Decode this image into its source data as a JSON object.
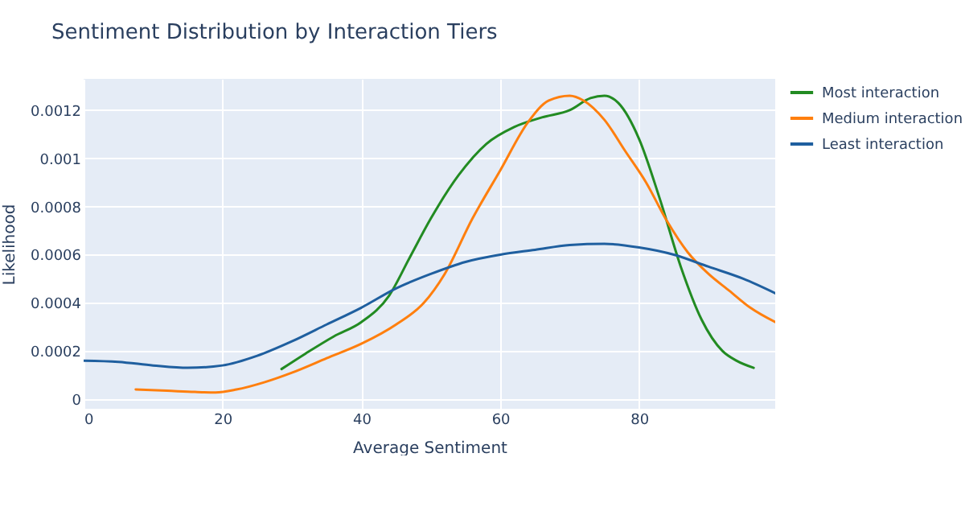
{
  "chart_data": {
    "type": "line",
    "title": "Sentiment Distribution by Interaction Tiers",
    "xlabel": "Average Sentiment",
    "ylabel": "Likelihood",
    "xlim": [
      0,
      99.6
    ],
    "xticks": [
      0,
      20,
      40,
      60,
      80
    ],
    "ylim": [
      -4e-05,
      0.00133
    ],
    "yticks": [
      0,
      0.0002,
      0.0004,
      0.0006,
      0.0008,
      0.001,
      0.0012
    ],
    "grid": true,
    "legend": "top right",
    "series": [
      {
        "name": "Most interaction",
        "color": "#228b22",
        "x": [
          28.5,
          32,
          36,
          40,
          44,
          47,
          50,
          54,
          58,
          62,
          66,
          70,
          73,
          75,
          77,
          80,
          83,
          86,
          89,
          92,
          94,
          96.5
        ],
        "values": [
          0.000125,
          0.00019,
          0.00026,
          0.00032,
          0.00043,
          0.00059,
          0.00075,
          0.00093,
          0.00106,
          0.00113,
          0.00117,
          0.0012,
          0.00125,
          0.00126,
          0.00123,
          0.00108,
          0.00083,
          0.00055,
          0.00033,
          0.0002,
          0.00016,
          0.00013
        ]
      },
      {
        "name": "Medium interaction",
        "color": "#ff7f0e",
        "x": [
          7.5,
          12,
          16,
          19,
          22,
          26,
          30,
          35,
          40,
          45,
          49,
          52,
          56,
          60,
          64,
          67,
          70,
          72,
          75,
          78,
          81,
          84,
          87,
          90,
          93,
          96,
          99.6
        ],
        "values": [
          4e-05,
          3.5e-05,
          3e-05,
          2.8e-05,
          4e-05,
          7e-05,
          0.00011,
          0.00017,
          0.00023,
          0.00031,
          0.0004,
          0.00052,
          0.00075,
          0.00095,
          0.00115,
          0.00124,
          0.00126,
          0.00124,
          0.00116,
          0.00103,
          0.0009,
          0.00074,
          0.00061,
          0.00052,
          0.00045,
          0.00038,
          0.00032
        ]
      },
      {
        "name": "Least interaction",
        "color": "#1f5f9f",
        "x": [
          0,
          5,
          10,
          15,
          20,
          25,
          30,
          35,
          40,
          45,
          50,
          55,
          60,
          65,
          70,
          75,
          80,
          85,
          90,
          95,
          99.6
        ],
        "values": [
          0.00016,
          0.000155,
          0.00014,
          0.00013,
          0.00014,
          0.00018,
          0.00024,
          0.00031,
          0.00038,
          0.00046,
          0.00052,
          0.00057,
          0.0006,
          0.00062,
          0.00064,
          0.000645,
          0.00063,
          0.0006,
          0.00055,
          0.0005,
          0.00044
        ]
      }
    ]
  }
}
